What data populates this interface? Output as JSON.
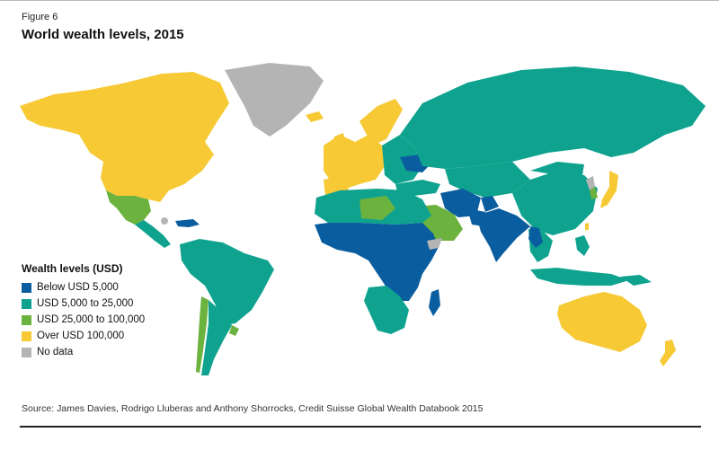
{
  "header": {
    "figure_label": "Figure 6",
    "title": "World wealth levels, 2015"
  },
  "colors": {
    "below_5000": "#0a5d9e",
    "5000_25000": "#0fa38f",
    "25000_100000": "#6cb23e",
    "over_100000": "#f6c935",
    "no_data": "#b4b4b4",
    "ocean": "#ffffff"
  },
  "legend": {
    "title": "Wealth levels (USD)",
    "items": [
      {
        "label": "Below USD 5,000",
        "color": "#0a5d9e"
      },
      {
        "label": "USD 5,000 to 25,000",
        "color": "#0fa38f"
      },
      {
        "label": "USD 25,000 to 100,000",
        "color": "#6cb23e"
      },
      {
        "label": "Over USD 100,000",
        "color": "#f6c935"
      },
      {
        "label": "No data",
        "color": "#b4b4b4"
      }
    ]
  },
  "source": "Source: James Davies, Rodrigo Lluberas and Anthony Shorrocks, Credit Suisse Global Wealth Databook 2015"
}
